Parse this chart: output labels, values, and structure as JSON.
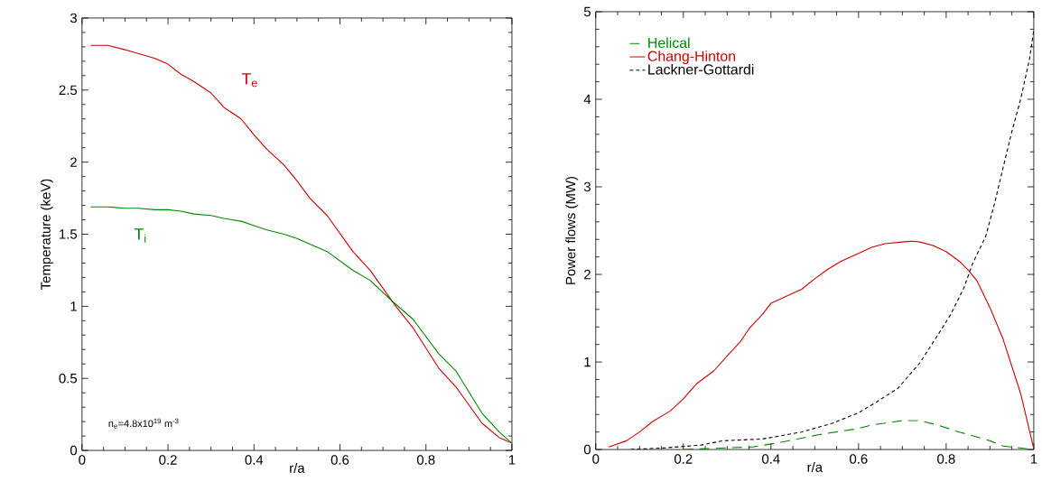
{
  "chart_data": [
    {
      "type": "line",
      "xlabel": "r/a",
      "ylabel": "Temperature (keV)",
      "xlim": [
        0,
        1
      ],
      "ylim": [
        0,
        3
      ],
      "xticks": [
        0,
        0.2,
        0.4,
        0.6,
        0.8,
        1
      ],
      "yticks": [
        0,
        0.5,
        1,
        1.5,
        2,
        2.5,
        3
      ],
      "marker": "none",
      "line_style": "solid",
      "grid": false,
      "legend": false,
      "annotations": [
        "T$_{e}$",
        "T$_{i}$",
        "n$_{e}$=4.8x10$^{19}$ m$^{-3}$"
      ],
      "series": [
        {
          "color": "#cc0000",
          "x": [
            0.02,
            0.06,
            0.1,
            0.17,
            0.2,
            0.23,
            0.26,
            0.3,
            0.33,
            0.37,
            0.4,
            0.43,
            0.47,
            0.5,
            0.53,
            0.57,
            0.63,
            0.67,
            0.73,
            0.77,
            0.83,
            0.87,
            0.93,
            0.97,
            1.0
          ],
          "values": [
            2.81,
            2.81,
            2.78,
            2.72,
            2.68,
            2.61,
            2.56,
            2.48,
            2.38,
            2.3,
            2.19,
            2.09,
            1.98,
            1.87,
            1.75,
            1.63,
            1.38,
            1.25,
            1.0,
            0.85,
            0.57,
            0.44,
            0.19,
            0.09,
            0.05
          ]
        },
        {
          "color": "#008800",
          "x": [
            0.02,
            0.06,
            0.1,
            0.13,
            0.17,
            0.2,
            0.23,
            0.26,
            0.3,
            0.33,
            0.37,
            0.4,
            0.43,
            0.47,
            0.5,
            0.57,
            0.63,
            0.67,
            0.72,
            0.77,
            0.83,
            0.87,
            0.93,
            0.97,
            1.0
          ],
          "values": [
            1.69,
            1.69,
            1.68,
            1.68,
            1.67,
            1.67,
            1.66,
            1.64,
            1.63,
            1.61,
            1.59,
            1.56,
            1.53,
            1.5,
            1.47,
            1.38,
            1.25,
            1.18,
            1.04,
            0.91,
            0.67,
            0.55,
            0.26,
            0.13,
            0.05
          ]
        }
      ]
    },
    {
      "type": "line",
      "xlabel": "r/a",
      "ylabel": "Power flows (MW)",
      "xlim": [
        0,
        1
      ],
      "ylim": [
        0,
        5
      ],
      "xticks": [
        0,
        0.2,
        0.4,
        0.6,
        0.8,
        1
      ],
      "yticks": [
        0,
        1,
        2,
        3,
        4,
        5
      ],
      "marker": "none",
      "grid": false,
      "legend": "top left",
      "series": [
        {
          "name": "Helical",
          "color": "#008800",
          "line_style": "dashed",
          "x": [
            0.2,
            0.25,
            0.36,
            0.42,
            0.51,
            0.6,
            0.63,
            0.7,
            0.74,
            0.78,
            0.83,
            0.9,
            0.93,
            1.0
          ],
          "values": [
            0,
            0.01,
            0.03,
            0.08,
            0.17,
            0.24,
            0.28,
            0.33,
            0.33,
            0.28,
            0.2,
            0.1,
            0.04,
            0
          ]
        },
        {
          "name": "Chang-Hinton",
          "color": "#cc0000",
          "line_style": "solid",
          "x": [
            0.03,
            0.07,
            0.1,
            0.13,
            0.17,
            0.2,
            0.23,
            0.27,
            0.3,
            0.33,
            0.35,
            0.38,
            0.4,
            0.47,
            0.5,
            0.53,
            0.56,
            0.6,
            0.63,
            0.66,
            0.7,
            0.72,
            0.74,
            0.77,
            0.8,
            0.83,
            0.85,
            0.87,
            0.9,
            0.93,
            0.97,
            1.0
          ],
          "values": [
            0.03,
            0.1,
            0.2,
            0.32,
            0.44,
            0.58,
            0.75,
            0.9,
            1.07,
            1.23,
            1.38,
            1.54,
            1.67,
            1.83,
            1.95,
            2.06,
            2.15,
            2.24,
            2.31,
            2.35,
            2.37,
            2.38,
            2.37,
            2.33,
            2.26,
            2.15,
            2.05,
            1.93,
            1.62,
            1.26,
            0.64,
            0.01
          ]
        },
        {
          "name": "Lackner-Gottardi",
          "color": "#000000",
          "line_style": "dashed",
          "x": [
            0.08,
            0.16,
            0.24,
            0.29,
            0.38,
            0.47,
            0.54,
            0.6,
            0.64,
            0.69,
            0.74,
            0.78,
            0.81,
            0.84,
            0.86,
            0.89,
            0.91,
            0.93,
            0.95,
            0.97,
            0.99,
            1.0
          ],
          "values": [
            0,
            0.02,
            0.05,
            0.1,
            0.12,
            0.2,
            0.3,
            0.42,
            0.54,
            0.7,
            0.99,
            1.3,
            1.54,
            1.84,
            2.12,
            2.43,
            2.8,
            3.22,
            3.63,
            4.0,
            4.45,
            4.79
          ]
        }
      ]
    }
  ]
}
